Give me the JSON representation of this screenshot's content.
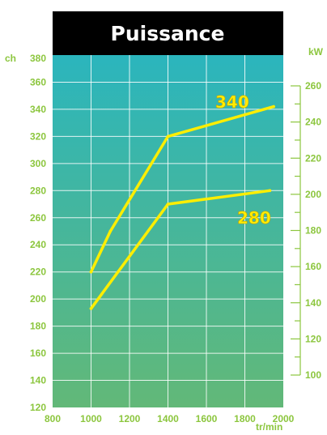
{
  "chart_data": {
    "type": "line",
    "title": "Puissance",
    "xlabel": "tr/min",
    "ylabel_left": "ch",
    "ylabel_right": "kW",
    "xlim": [
      800,
      2000
    ],
    "ylim": [
      120,
      380
    ],
    "ylim_right": [
      100,
      260
    ],
    "x_ticks": [
      800,
      1000,
      1200,
      1400,
      1600,
      1800,
      2000
    ],
    "y_ticks": [
      120,
      140,
      160,
      180,
      200,
      220,
      240,
      260,
      280,
      300,
      320,
      340,
      360,
      380
    ],
    "y_right_ticks": [
      100,
      120,
      140,
      160,
      180,
      200,
      220,
      240,
      260
    ],
    "grid": true,
    "series": [
      {
        "name": "340",
        "x": [
          1000,
          1100,
          1400,
          1950
        ],
        "y": [
          220,
          250,
          320,
          342
        ]
      },
      {
        "name": "280",
        "x": [
          1000,
          1400,
          1930
        ],
        "y": [
          193,
          270,
          280
        ]
      }
    ],
    "colors": {
      "background_top": "#2bb5bd",
      "background_bottom": "#62b878",
      "line": "#ffee00",
      "tick_text": "#8cc63e",
      "title_bg": "#000000",
      "title_text": "#ffffff"
    }
  }
}
